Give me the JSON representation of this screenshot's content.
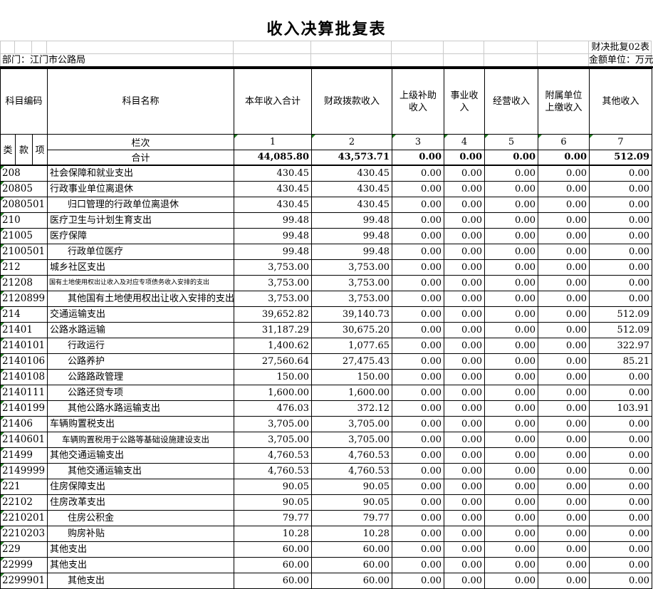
{
  "title": "收入决算批复表",
  "meta": {
    "form_code": "财决批复02表",
    "department": "部门：江门市公路局",
    "unit": "金额单位：万元"
  },
  "colors": {
    "triangle": "#217a21",
    "grid": "#c9c9c9",
    "border": "#000000"
  },
  "header": {
    "subject_code": "科目编码",
    "subject_name": "科目名称",
    "code_sub": [
      "类",
      "款",
      "项"
    ],
    "value_cols": [
      "本年收入合计",
      "财政拨款收入",
      "上级补助\n收入",
      "事业收\n入",
      "经营收入",
      "附属单位\n上缴收入",
      "其他收入"
    ],
    "lanci_label": "栏次",
    "lanci_numbers": [
      "1",
      "2",
      "3",
      "4",
      "5",
      "6",
      "7"
    ],
    "total_label": "合计"
  },
  "total_row": [
    "44,085.80",
    "43,573.71",
    "0.00",
    "0.00",
    "0.00",
    "0.00",
    "512.09"
  ],
  "rows": [
    {
      "code": "208",
      "name": "社会保障和就业支出",
      "style": "",
      "values": [
        "430.45",
        "430.45",
        "0.00",
        "0.00",
        "0.00",
        "0.00",
        "0.00"
      ]
    },
    {
      "code": "20805",
      "name": "行政事业单位离退休",
      "style": "",
      "values": [
        "430.45",
        "430.45",
        "0.00",
        "0.00",
        "0.00",
        "0.00",
        "0.00"
      ]
    },
    {
      "code": "2080501",
      "name": "归口管理的行政单位离退休",
      "style": "indent",
      "values": [
        "430.45",
        "430.45",
        "0.00",
        "0.00",
        "0.00",
        "0.00",
        "0.00"
      ]
    },
    {
      "code": "210",
      "name": "医疗卫生与计划生育支出",
      "style": "",
      "values": [
        "99.48",
        "99.48",
        "0.00",
        "0.00",
        "0.00",
        "0.00",
        "0.00"
      ]
    },
    {
      "code": "21005",
      "name": "医疗保障",
      "style": "",
      "values": [
        "99.48",
        "99.48",
        "0.00",
        "0.00",
        "0.00",
        "0.00",
        "0.00"
      ]
    },
    {
      "code": "2100501",
      "name": "行政单位医疗",
      "style": "indent",
      "values": [
        "99.48",
        "99.48",
        "0.00",
        "0.00",
        "0.00",
        "0.00",
        "0.00"
      ]
    },
    {
      "code": "212",
      "name": "城乡社区支出",
      "style": "",
      "values": [
        "3,753.00",
        "3,753.00",
        "0.00",
        "0.00",
        "0.00",
        "0.00",
        "0.00"
      ]
    },
    {
      "code": "21208",
      "name": "国有土地使用权出让收入及对应专项债务收入安排的支出",
      "style": "xs",
      "values": [
        "3,753.00",
        "3,753.00",
        "0.00",
        "0.00",
        "0.00",
        "0.00",
        "0.00"
      ]
    },
    {
      "code": "2120899",
      "name": "其他国有土地使用权出让收入安排的支出",
      "style": "indent",
      "values": [
        "3,753.00",
        "3,753.00",
        "0.00",
        "0.00",
        "0.00",
        "0.00",
        "0.00"
      ]
    },
    {
      "code": "214",
      "name": "交通运输支出",
      "style": "",
      "values": [
        "39,652.82",
        "39,140.73",
        "0.00",
        "0.00",
        "0.00",
        "0.00",
        "512.09"
      ]
    },
    {
      "code": "21401",
      "name": "公路水路运输",
      "style": "",
      "values": [
        "31,187.29",
        "30,675.20",
        "0.00",
        "0.00",
        "0.00",
        "0.00",
        "512.09"
      ]
    },
    {
      "code": "2140101",
      "name": "行政运行",
      "style": "indent",
      "values": [
        "1,400.62",
        "1,077.65",
        "0.00",
        "0.00",
        "0.00",
        "0.00",
        "322.97"
      ]
    },
    {
      "code": "2140106",
      "name": "公路养护",
      "style": "indent",
      "values": [
        "27,560.64",
        "27,475.43",
        "0.00",
        "0.00",
        "0.00",
        "0.00",
        "85.21"
      ]
    },
    {
      "code": "2140108",
      "name": "公路路政管理",
      "style": "indent",
      "values": [
        "150.00",
        "150.00",
        "0.00",
        "0.00",
        "0.00",
        "0.00",
        "0.00"
      ]
    },
    {
      "code": "2140111",
      "name": "公路还贷专项",
      "style": "indent",
      "values": [
        "1,600.00",
        "1,600.00",
        "0.00",
        "0.00",
        "0.00",
        "0.00",
        "0.00"
      ]
    },
    {
      "code": "2140199",
      "name": "其他公路水路运输支出",
      "style": "indent",
      "values": [
        "476.03",
        "372.12",
        "0.00",
        "0.00",
        "0.00",
        "0.00",
        "103.91"
      ]
    },
    {
      "code": "21406",
      "name": "车辆购置税支出",
      "style": "",
      "values": [
        "3,705.00",
        "3,705.00",
        "0.00",
        "0.00",
        "0.00",
        "0.00",
        "0.00"
      ]
    },
    {
      "code": "2140601",
      "name": "车辆购置税用于公路等基础设施建设支出",
      "style": "sm",
      "values": [
        "3,705.00",
        "3,705.00",
        "0.00",
        "0.00",
        "0.00",
        "0.00",
        "0.00"
      ]
    },
    {
      "code": "21499",
      "name": "其他交通运输支出",
      "style": "",
      "values": [
        "4,760.53",
        "4,760.53",
        "0.00",
        "0.00",
        "0.00",
        "0.00",
        "0.00"
      ]
    },
    {
      "code": "2149999",
      "name": "其他交通运输支出",
      "style": "indent",
      "values": [
        "4,760.53",
        "4,760.53",
        "0.00",
        "0.00",
        "0.00",
        "0.00",
        "0.00"
      ]
    },
    {
      "code": "221",
      "name": "住房保障支出",
      "style": "",
      "values": [
        "90.05",
        "90.05",
        "0.00",
        "0.00",
        "0.00",
        "0.00",
        "0.00"
      ]
    },
    {
      "code": "22102",
      "name": "住房改革支出",
      "style": "",
      "values": [
        "90.05",
        "90.05",
        "0.00",
        "0.00",
        "0.00",
        "0.00",
        "0.00"
      ]
    },
    {
      "code": "2210201",
      "name": "住房公积金",
      "style": "indent",
      "values": [
        "79.77",
        "79.77",
        "0.00",
        "0.00",
        "0.00",
        "0.00",
        "0.00"
      ]
    },
    {
      "code": "2210203",
      "name": "购房补贴",
      "style": "indent",
      "values": [
        "10.28",
        "10.28",
        "0.00",
        "0.00",
        "0.00",
        "0.00",
        "0.00"
      ]
    },
    {
      "code": "229",
      "name": "其他支出",
      "style": "",
      "values": [
        "60.00",
        "60.00",
        "0.00",
        "0.00",
        "0.00",
        "0.00",
        "0.00"
      ]
    },
    {
      "code": "22999",
      "name": "其他支出",
      "style": "",
      "values": [
        "60.00",
        "60.00",
        "0.00",
        "0.00",
        "0.00",
        "0.00",
        "0.00"
      ]
    },
    {
      "code": "2299901",
      "name": "其他支出",
      "style": "indent",
      "values": [
        "60.00",
        "60.00",
        "0.00",
        "0.00",
        "0.00",
        "0.00",
        "0.00"
      ]
    }
  ]
}
